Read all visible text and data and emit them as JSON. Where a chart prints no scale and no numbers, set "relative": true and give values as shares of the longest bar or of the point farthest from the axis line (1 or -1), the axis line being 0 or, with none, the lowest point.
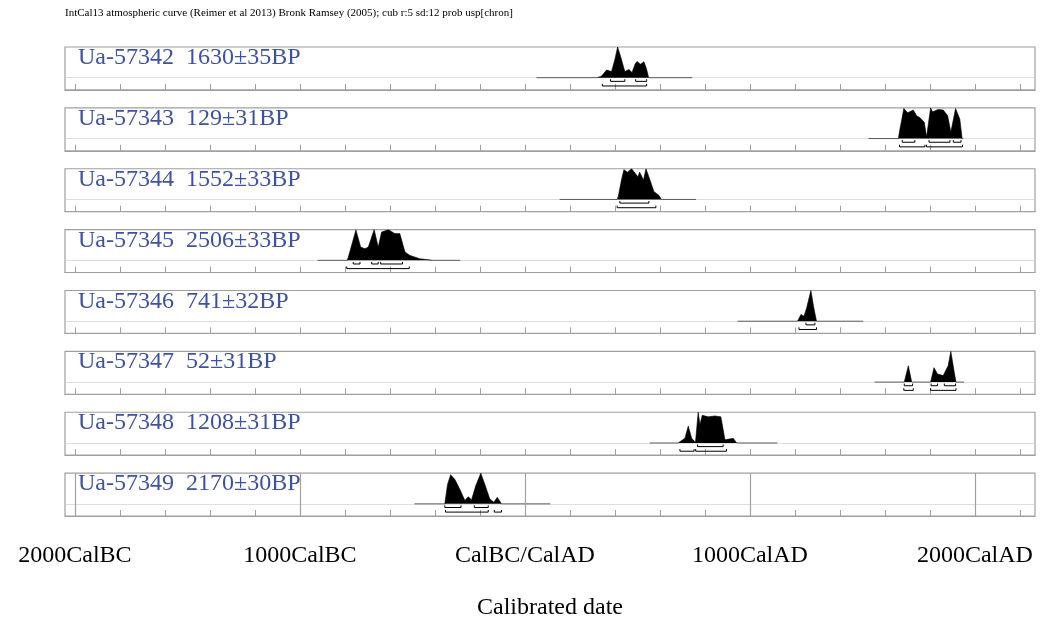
{
  "chart_data": [
    {
      "type": "area",
      "relative": true,
      "title": "Ua-57342  1630±35BP",
      "annotations": [
        "IntCal13 atmospheric curve (Reimer et al 2013) Bronk Ramsey (2005); cub r:5 sd:12 prob usp[chron]"
      ],
      "xlim": [
        -2044,
        2267
      ],
      "xticks": [
        {
          "value": -2000,
          "label": null
        },
        {
          "value": -1800,
          "label": null
        },
        {
          "value": -1600,
          "label": null
        },
        {
          "value": -1400,
          "label": null
        },
        {
          "value": -1200,
          "label": null
        },
        {
          "value": -1000,
          "label": null
        },
        {
          "value": -800,
          "label": null
        },
        {
          "value": -600,
          "label": null
        },
        {
          "value": -400,
          "label": null
        },
        {
          "value": -200,
          "label": null
        },
        {
          "value": 0,
          "label": null
        },
        {
          "value": 200,
          "label": null
        },
        {
          "value": 400,
          "label": null
        },
        {
          "value": 600,
          "label": null
        },
        {
          "value": 800,
          "label": null
        },
        {
          "value": 1000,
          "label": null
        },
        {
          "value": 1200,
          "label": null
        },
        {
          "value": 1400,
          "label": null
        },
        {
          "value": 1600,
          "label": null
        },
        {
          "value": 1800,
          "label": null
        },
        {
          "value": 2000,
          "label": null
        },
        {
          "value": 2200,
          "label": null
        }
      ],
      "grid": "x",
      "tick_labels": false,
      "series": [
        {
          "color": "#000000",
          "x": [
            53,
            320,
            340,
            363,
            385,
            400,
            412,
            425,
            444,
            462,
            476,
            490,
            498,
            514,
            529,
            540,
            550,
            742
          ],
          "values": [
            0,
            0,
            0.05,
            0.25,
            0.2,
            0.6,
            1,
            0.7,
            0.2,
            0.27,
            0.17,
            0.45,
            0.53,
            0.44,
            0.52,
            0.3,
            0,
            0
          ]
        },
        {
          "type": "line",
          "color": "#000000",
          "x": [
            381,
            381,
            444,
            444
          ],
          "values": [
            -0.05,
            -0.12,
            -0.12,
            -0.05
          ]
        },
        {
          "type": "line",
          "color": "#000000",
          "x": [
            492,
            492,
            541,
            541
          ],
          "values": [
            -0.05,
            -0.12,
            -0.12,
            -0.05
          ]
        },
        {
          "type": "line",
          "color": "#000000",
          "x": [
            344,
            344,
            541,
            541
          ],
          "values": [
            -0.2,
            -0.27,
            -0.27,
            -0.2
          ]
        }
      ]
    },
    {
      "type": "area",
      "relative": true,
      "title": "Ua-57343  129±31BP",
      "xlim": [
        -2044,
        2267
      ],
      "xticks": [
        {
          "value": -2000,
          "label": null
        },
        {
          "value": -1800,
          "label": null
        },
        {
          "value": -1600,
          "label": null
        },
        {
          "value": -1400,
          "label": null
        },
        {
          "value": -1200,
          "label": null
        },
        {
          "value": -1000,
          "label": null
        },
        {
          "value": -800,
          "label": null
        },
        {
          "value": -600,
          "label": null
        },
        {
          "value": -400,
          "label": null
        },
        {
          "value": -200,
          "label": null
        },
        {
          "value": 0,
          "label": null
        },
        {
          "value": 200,
          "label": null
        },
        {
          "value": 400,
          "label": null
        },
        {
          "value": 600,
          "label": null
        },
        {
          "value": 800,
          "label": null
        },
        {
          "value": 1000,
          "label": null
        },
        {
          "value": 1200,
          "label": null
        },
        {
          "value": 1400,
          "label": null
        },
        {
          "value": 1600,
          "label": null
        },
        {
          "value": 1800,
          "label": null
        },
        {
          "value": 2000,
          "label": null
        },
        {
          "value": 2200,
          "label": null
        }
      ],
      "grid": "x",
      "tick_labels": false,
      "series": [
        {
          "color": "#000000",
          "x": [
            1529,
            1660,
            1664,
            1684,
            1701,
            1726,
            1741,
            1756,
            1775,
            1785,
            1803,
            1812,
            1837,
            1859,
            1879,
            1893,
            1914,
            1933,
            1943,
            1947
          ],
          "values": [
            0,
            0,
            0.2,
            0.98,
            0.84,
            0.93,
            0.74,
            0.68,
            0.53,
            0.05,
            1,
            0.87,
            0.95,
            0.93,
            0.74,
            0.21,
            0.98,
            0.63,
            0,
            0
          ]
        },
        {
          "type": "line",
          "color": "#000000",
          "x": [
            1677,
            1677,
            1733,
            1733
          ],
          "values": [
            -0.05,
            -0.12,
            -0.12,
            -0.05
          ]
        },
        {
          "type": "line",
          "color": "#000000",
          "x": [
            1796,
            1796,
            1889,
            1889
          ],
          "values": [
            -0.05,
            -0.12,
            -0.12,
            -0.05
          ]
        },
        {
          "type": "line",
          "color": "#000000",
          "x": [
            1904,
            1904,
            1938,
            1938
          ],
          "values": [
            -0.05,
            -0.12,
            -0.12,
            -0.05
          ]
        },
        {
          "type": "line",
          "color": "#000000",
          "x": [
            1665,
            1665,
            1778,
            1778
          ],
          "values": [
            -0.2,
            -0.27,
            -0.27,
            -0.2
          ]
        },
        {
          "type": "line",
          "color": "#000000",
          "x": [
            1785,
            1785,
            1945,
            1945
          ],
          "values": [
            -0.2,
            -0.27,
            -0.27,
            -0.2
          ]
        }
      ]
    },
    {
      "type": "area",
      "relative": true,
      "title": "Ua-57344  1552±33BP",
      "xlim": [
        -2044,
        2267
      ],
      "xticks": [
        {
          "value": -2000,
          "label": null
        },
        {
          "value": -1800,
          "label": null
        },
        {
          "value": -1600,
          "label": null
        },
        {
          "value": -1400,
          "label": null
        },
        {
          "value": -1200,
          "label": null
        },
        {
          "value": -1000,
          "label": null
        },
        {
          "value": -800,
          "label": null
        },
        {
          "value": -600,
          "label": null
        },
        {
          "value": -400,
          "label": null
        },
        {
          "value": -200,
          "label": null
        },
        {
          "value": 0,
          "label": null
        },
        {
          "value": 200,
          "label": null
        },
        {
          "value": 400,
          "label": null
        },
        {
          "value": 600,
          "label": null
        },
        {
          "value": 800,
          "label": null
        },
        {
          "value": 1000,
          "label": null
        },
        {
          "value": 1200,
          "label": null
        },
        {
          "value": 1400,
          "label": null
        },
        {
          "value": 1600,
          "label": null
        },
        {
          "value": 1800,
          "label": null
        },
        {
          "value": 2000,
          "label": null
        },
        {
          "value": 2200,
          "label": null
        }
      ],
      "grid": "x",
      "tick_labels": false,
      "series": [
        {
          "color": "#000000",
          "x": [
            156,
            410,
            415,
            429,
            440,
            456,
            474,
            502,
            510,
            527,
            538,
            556,
            573,
            596,
            607,
            759
          ],
          "values": [
            0,
            0,
            0.1,
            0.63,
            0.97,
            0.89,
            1,
            0.74,
            0.89,
            0.63,
            1,
            0.63,
            0.26,
            0.13,
            0,
            0
          ]
        },
        {
          "type": "line",
          "color": "#000000",
          "x": [
            422,
            422,
            551,
            551
          ],
          "values": [
            -0.05,
            -0.12,
            -0.12,
            -0.05
          ]
        },
        {
          "type": "line",
          "color": "#000000",
          "x": [
            410,
            410,
            582,
            582
          ],
          "values": [
            -0.2,
            -0.27,
            -0.27,
            -0.2
          ]
        }
      ]
    },
    {
      "type": "area",
      "relative": true,
      "title": "Ua-57345  2506±33BP",
      "xlim": [
        -2044,
        2267
      ],
      "xticks": [
        {
          "value": -2000,
          "label": null
        },
        {
          "value": -1800,
          "label": null
        },
        {
          "value": -1600,
          "label": null
        },
        {
          "value": -1400,
          "label": null
        },
        {
          "value": -1200,
          "label": null
        },
        {
          "value": -1000,
          "label": null
        },
        {
          "value": -800,
          "label": null
        },
        {
          "value": -600,
          "label": null
        },
        {
          "value": -400,
          "label": null
        },
        {
          "value": -200,
          "label": null
        },
        {
          "value": 0,
          "label": null
        },
        {
          "value": 200,
          "label": null
        },
        {
          "value": 400,
          "label": null
        },
        {
          "value": 600,
          "label": null
        },
        {
          "value": 800,
          "label": null
        },
        {
          "value": 1000,
          "label": null
        },
        {
          "value": 1200,
          "label": null
        },
        {
          "value": 1400,
          "label": null
        },
        {
          "value": 1600,
          "label": null
        },
        {
          "value": 1800,
          "label": null
        },
        {
          "value": 2000,
          "label": null
        },
        {
          "value": 2200,
          "label": null
        }
      ],
      "grid": "x",
      "tick_labels": false,
      "series": [
        {
          "color": "#000000",
          "x": [
            -920,
            -790,
            -785,
            -751,
            -730,
            -711,
            -696,
            -670,
            -652,
            -637,
            -607,
            -578,
            -556,
            -533,
            -511,
            -467,
            -407,
            -289
          ],
          "values": [
            0,
            0,
            0.1,
            0.99,
            0.43,
            0.38,
            0.43,
            1,
            0.43,
            0.92,
            1,
            0.87,
            0.87,
            0.27,
            0.16,
            0.05,
            0,
            0
          ]
        },
        {
          "type": "line",
          "color": "#000000",
          "x": [
            -763,
            -763,
            -733,
            -733
          ],
          "values": [
            -0.05,
            -0.12,
            -0.12,
            -0.05
          ]
        },
        {
          "type": "line",
          "color": "#000000",
          "x": [
            -681,
            -681,
            -652,
            -652
          ],
          "values": [
            -0.05,
            -0.12,
            -0.12,
            -0.05
          ]
        },
        {
          "type": "line",
          "color": "#000000",
          "x": [
            -641,
            -641,
            -544,
            -544
          ],
          "values": [
            -0.05,
            -0.12,
            -0.12,
            -0.05
          ]
        },
        {
          "type": "line",
          "color": "#000000",
          "x": [
            -792,
            -792,
            -514,
            -514
          ],
          "values": [
            -0.2,
            -0.27,
            -0.27,
            -0.2
          ]
        }
      ]
    },
    {
      "type": "area",
      "relative": true,
      "title": "Ua-57346  741±32BP",
      "xlim": [
        -2044,
        2267
      ],
      "xticks": [
        {
          "value": -2000,
          "label": null
        },
        {
          "value": -1800,
          "label": null
        },
        {
          "value": -1600,
          "label": null
        },
        {
          "value": -1400,
          "label": null
        },
        {
          "value": -1200,
          "label": null
        },
        {
          "value": -1000,
          "label": null
        },
        {
          "value": -800,
          "label": null
        },
        {
          "value": -600,
          "label": null
        },
        {
          "value": -400,
          "label": null
        },
        {
          "value": -200,
          "label": null
        },
        {
          "value": 0,
          "label": null
        },
        {
          "value": 200,
          "label": null
        },
        {
          "value": 400,
          "label": null
        },
        {
          "value": 600,
          "label": null
        },
        {
          "value": 800,
          "label": null
        },
        {
          "value": 1000,
          "label": null
        },
        {
          "value": 1200,
          "label": null
        },
        {
          "value": 1400,
          "label": null
        },
        {
          "value": 1600,
          "label": null
        },
        {
          "value": 1800,
          "label": null
        },
        {
          "value": 2000,
          "label": null
        },
        {
          "value": 2200,
          "label": null
        }
      ],
      "grid": "x",
      "tick_labels": false,
      "series": [
        {
          "color": "#000000",
          "x": [
            947,
            1210,
            1215,
            1227,
            1240,
            1252,
            1271,
            1284,
            1296,
            1502
          ],
          "values": [
            0,
            0,
            0.05,
            0.22,
            0.16,
            0.43,
            1,
            0.43,
            0,
            0
          ]
        },
        {
          "type": "line",
          "color": "#000000",
          "x": [
            1249,
            1249,
            1289,
            1289
          ],
          "values": [
            -0.05,
            -0.12,
            -0.12,
            -0.05
          ]
        },
        {
          "type": "line",
          "color": "#000000",
          "x": [
            1218,
            1218,
            1296,
            1296
          ],
          "values": [
            -0.2,
            -0.27,
            -0.27,
            -0.2
          ]
        }
      ]
    },
    {
      "type": "area",
      "relative": true,
      "title": "Ua-57347  52±31BP",
      "xlim": [
        -2044,
        2267
      ],
      "xticks": [
        {
          "value": -2000,
          "label": null
        },
        {
          "value": -1800,
          "label": null
        },
        {
          "value": -1600,
          "label": null
        },
        {
          "value": -1400,
          "label": null
        },
        {
          "value": -1200,
          "label": null
        },
        {
          "value": -1000,
          "label": null
        },
        {
          "value": -800,
          "label": null
        },
        {
          "value": -600,
          "label": null
        },
        {
          "value": -400,
          "label": null
        },
        {
          "value": -200,
          "label": null
        },
        {
          "value": 0,
          "label": null
        },
        {
          "value": 200,
          "label": null
        },
        {
          "value": 400,
          "label": null
        },
        {
          "value": 600,
          "label": null
        },
        {
          "value": 800,
          "label": null
        },
        {
          "value": 1000,
          "label": null
        },
        {
          "value": 1200,
          "label": null
        },
        {
          "value": 1400,
          "label": null
        },
        {
          "value": 1600,
          "label": null
        },
        {
          "value": 1800,
          "label": null
        },
        {
          "value": 2000,
          "label": null
        },
        {
          "value": 2200,
          "label": null
        }
      ],
      "grid": "x",
      "tick_labels": false,
      "series": [
        {
          "color": "#000000",
          "x": [
            1556,
            1686,
            1704,
            1719,
            1803,
            1818,
            1834,
            1859,
            1881,
            1893,
            1908,
            1916,
            1950
          ],
          "values": [
            0,
            0,
            0.53,
            0,
            0,
            0.47,
            0.26,
            0.21,
            0.53,
            1,
            0.32,
            0,
            0
          ]
        },
        {
          "type": "line",
          "color": "#000000",
          "x": [
            1686,
            1686,
            1723,
            1723
          ],
          "values": [
            -0.05,
            -0.12,
            -0.12,
            -0.05
          ]
        },
        {
          "type": "line",
          "color": "#000000",
          "x": [
            1805,
            1805,
            1834,
            1834
          ],
          "values": [
            -0.05,
            -0.12,
            -0.12,
            -0.05
          ]
        },
        {
          "type": "line",
          "color": "#000000",
          "x": [
            1864,
            1864,
            1914,
            1914
          ],
          "values": [
            -0.05,
            -0.12,
            -0.12,
            -0.05
          ]
        },
        {
          "type": "line",
          "color": "#000000",
          "x": [
            1684,
            1684,
            1726,
            1726
          ],
          "values": [
            -0.2,
            -0.27,
            -0.27,
            -0.2
          ]
        },
        {
          "type": "line",
          "color": "#000000",
          "x": [
            1803,
            1803,
            1916,
            1916
          ],
          "values": [
            -0.2,
            -0.27,
            -0.27,
            -0.2
          ]
        }
      ]
    },
    {
      "type": "area",
      "relative": true,
      "title": "Ua-57348  1208±31BP",
      "xlim": [
        -2044,
        2267
      ],
      "xticks": [
        {
          "value": -2000,
          "label": null
        },
        {
          "value": -1800,
          "label": null
        },
        {
          "value": -1600,
          "label": null
        },
        {
          "value": -1400,
          "label": null
        },
        {
          "value": -1200,
          "label": null
        },
        {
          "value": -1000,
          "label": null
        },
        {
          "value": -800,
          "label": null
        },
        {
          "value": -600,
          "label": null
        },
        {
          "value": -400,
          "label": null
        },
        {
          "value": -200,
          "label": null
        },
        {
          "value": 0,
          "label": null
        },
        {
          "value": 200,
          "label": null
        },
        {
          "value": 400,
          "label": null
        },
        {
          "value": 600,
          "label": null
        },
        {
          "value": 800,
          "label": null
        },
        {
          "value": 1000,
          "label": null
        },
        {
          "value": 1200,
          "label": null
        },
        {
          "value": 1400,
          "label": null
        },
        {
          "value": 1600,
          "label": null
        },
        {
          "value": 1800,
          "label": null
        },
        {
          "value": 2000,
          "label": null
        },
        {
          "value": 2200,
          "label": null
        }
      ],
      "grid": "x",
      "tick_labels": false,
      "series": [
        {
          "color": "#000000",
          "x": [
            556,
            681,
            711,
            726,
            741,
            758,
            770,
            778,
            788,
            815,
            844,
            871,
            889,
            926,
            941,
            1120
          ],
          "values": [
            0,
            0,
            0.15,
            0.55,
            0.15,
            0.02,
            1,
            0.6,
            0.9,
            0.85,
            0.88,
            0.85,
            0.1,
            0.15,
            0,
            0
          ]
        },
        {
          "type": "line",
          "color": "#000000",
          "x": [
            767,
            767,
            881,
            881
          ],
          "values": [
            -0.05,
            -0.12,
            -0.12,
            -0.05
          ]
        },
        {
          "type": "line",
          "color": "#000000",
          "x": [
            689,
            689,
            752,
            752
          ],
          "values": [
            -0.2,
            -0.27,
            -0.27,
            -0.2
          ]
        },
        {
          "type": "line",
          "color": "#000000",
          "x": [
            759,
            759,
            896,
            896
          ],
          "values": [
            -0.2,
            -0.27,
            -0.27,
            -0.2
          ]
        }
      ]
    },
    {
      "type": "area",
      "relative": true,
      "title": "Ua-57349  2170±30BP",
      "xlabel": "Calibrated date",
      "xlim": [
        -2044,
        2267
      ],
      "xticks": [
        {
          "value": -2000,
          "label": "2000CalBC"
        },
        {
          "value": -1800,
          "label": null
        },
        {
          "value": -1600,
          "label": null
        },
        {
          "value": -1400,
          "label": null
        },
        {
          "value": -1200,
          "label": null
        },
        {
          "value": -1000,
          "label": "1000CalBC"
        },
        {
          "value": -800,
          "label": null
        },
        {
          "value": -600,
          "label": null
        },
        {
          "value": -400,
          "label": null
        },
        {
          "value": -200,
          "label": null
        },
        {
          "value": 0,
          "label": "CalBC/CalAD"
        },
        {
          "value": 200,
          "label": null
        },
        {
          "value": 400,
          "label": null
        },
        {
          "value": 600,
          "label": null
        },
        {
          "value": 800,
          "label": null
        },
        {
          "value": 1000,
          "label": "1000CalAD"
        },
        {
          "value": 1200,
          "label": null
        },
        {
          "value": 1400,
          "label": null
        },
        {
          "value": 1600,
          "label": null
        },
        {
          "value": 1800,
          "label": null
        },
        {
          "value": 2000,
          "label": "2000CalAD"
        },
        {
          "value": 2200,
          "label": null
        }
      ],
      "grid": "x",
      "tick_labels": "x",
      "series": [
        {
          "color": "#000000",
          "x": [
            -489,
            -356,
            -344,
            -330,
            -311,
            -289,
            -267,
            -252,
            -237,
            -219,
            -196,
            -178,
            -156,
            -138,
            -123,
            -104,
            111
          ],
          "values": [
            0,
            0,
            0.63,
            0.95,
            0.79,
            0.47,
            0.11,
            0.23,
            0.13,
            0.58,
            1,
            0.63,
            0.16,
            0.05,
            0.21,
            0,
            0
          ]
        },
        {
          "type": "line",
          "color": "#000000",
          "x": [
            -356,
            -356,
            -284,
            -284
          ],
          "values": [
            -0.05,
            -0.12,
            -0.12,
            -0.05
          ]
        },
        {
          "type": "line",
          "color": "#000000",
          "x": [
            -225,
            -225,
            -163,
            -163
          ],
          "values": [
            -0.05,
            -0.12,
            -0.12,
            -0.05
          ]
        },
        {
          "type": "line",
          "color": "#000000",
          "x": [
            -353,
            -353,
            -163,
            -163
          ],
          "values": [
            -0.2,
            -0.27,
            -0.27,
            -0.2
          ]
        },
        {
          "type": "line",
          "color": "#000000",
          "x": [
            -136,
            -136,
            -104,
            -104
          ],
          "values": [
            -0.2,
            -0.27,
            -0.27,
            -0.2
          ]
        }
      ]
    }
  ]
}
